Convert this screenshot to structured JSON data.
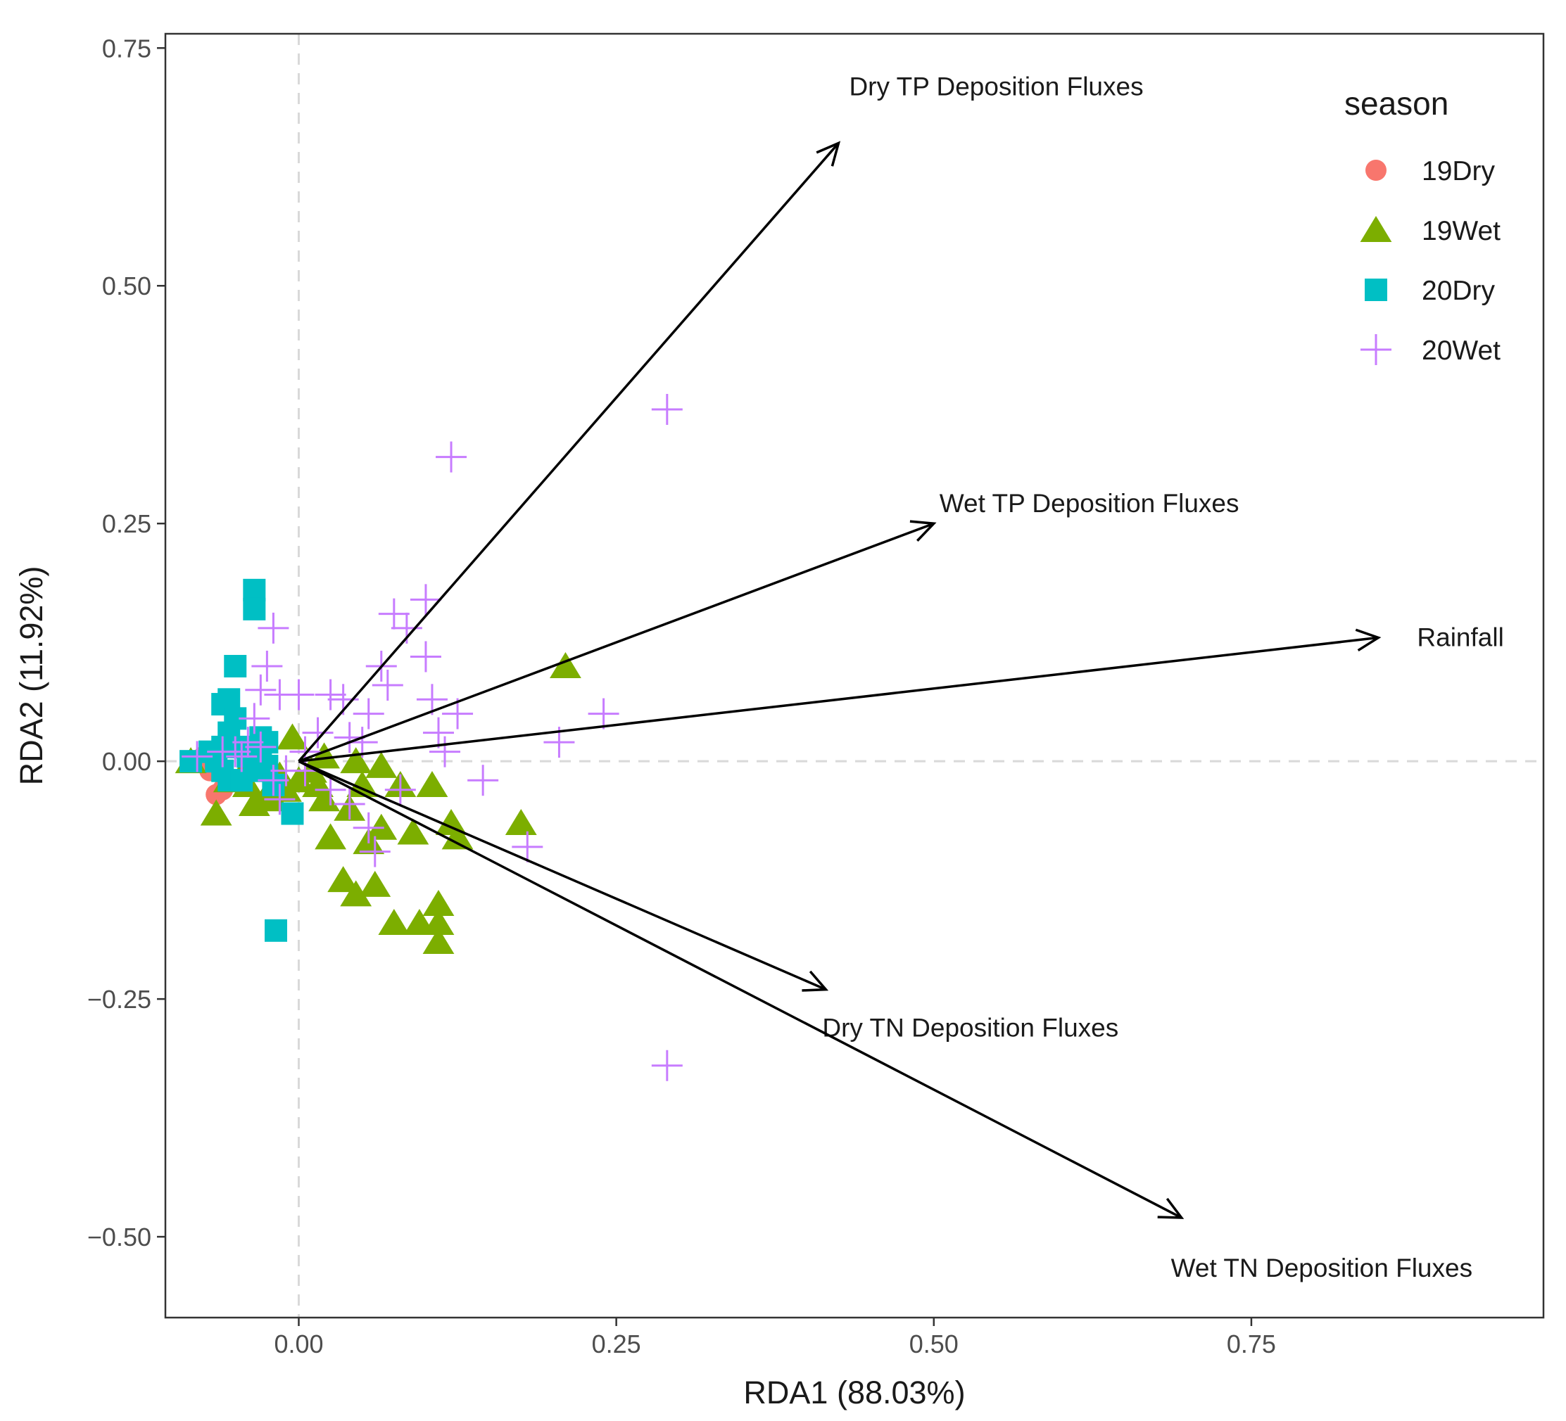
{
  "chart_data": {
    "type": "scatter",
    "xlabel": "RDA1 (88.03%)",
    "ylabel": "RDA2 (11.92%)",
    "xlim": [
      -0.105,
      0.98
    ],
    "ylim": [
      -0.585,
      0.765
    ],
    "x_ticks": [
      0.0,
      0.25,
      0.5,
      0.75
    ],
    "x_tick_labels": [
      "0.00",
      "0.25",
      "0.50",
      "0.75"
    ],
    "y_ticks": [
      0.75,
      0.5,
      0.25,
      0.0,
      -0.25,
      -0.5
    ],
    "y_tick_labels": [
      "0.75",
      "0.50",
      "0.25",
      "0.00",
      "−0.25",
      "−0.50"
    ],
    "reference_lines": {
      "x": 0,
      "y": 0,
      "style": "dashed",
      "color": "#d9d9d9"
    },
    "grid": false,
    "legend": {
      "title": "season",
      "position": "top-right",
      "entries": [
        {
          "label": "19Dry",
          "shape": "circle",
          "color": "#F8766D"
        },
        {
          "label": "19Wet",
          "shape": "triangle",
          "color": "#7CAE00"
        },
        {
          "label": "20Dry",
          "shape": "square",
          "color": "#00BFC4"
        },
        {
          "label": "20Wet",
          "shape": "plus",
          "color": "#C77CFF"
        }
      ]
    },
    "series": [
      {
        "name": "19Dry",
        "shape": "circle",
        "color": "#F8766D",
        "points": [
          {
            "x": -0.065,
            "y": -0.035
          },
          {
            "x": -0.06,
            "y": -0.03
          },
          {
            "x": -0.055,
            "y": -0.02
          },
          {
            "x": -0.07,
            "y": -0.01
          },
          {
            "x": -0.075,
            "y": 0.005
          }
        ]
      },
      {
        "name": "19Wet",
        "shape": "triangle",
        "color": "#7CAE00",
        "points": [
          {
            "x": 0.21,
            "y": 0.1
          },
          {
            "x": -0.085,
            "y": 0.0
          },
          {
            "x": -0.065,
            "y": -0.055
          },
          {
            "x": -0.055,
            "y": -0.02
          },
          {
            "x": -0.045,
            "y": -0.015
          },
          {
            "x": -0.04,
            "y": -0.025
          },
          {
            "x": -0.035,
            "y": -0.045
          },
          {
            "x": -0.025,
            "y": -0.035
          },
          {
            "x": -0.02,
            "y": -0.04
          },
          {
            "x": -0.015,
            "y": -0.015
          },
          {
            "x": -0.01,
            "y": -0.03
          },
          {
            "x": -0.005,
            "y": 0.025
          },
          {
            "x": 0.0,
            "y": -0.02
          },
          {
            "x": 0.01,
            "y": -0.01
          },
          {
            "x": 0.015,
            "y": -0.025
          },
          {
            "x": 0.02,
            "y": -0.04
          },
          {
            "x": 0.02,
            "y": 0.005
          },
          {
            "x": 0.025,
            "y": -0.08
          },
          {
            "x": 0.035,
            "y": -0.125
          },
          {
            "x": 0.04,
            "y": -0.05
          },
          {
            "x": 0.045,
            "y": 0.0
          },
          {
            "x": 0.045,
            "y": -0.14
          },
          {
            "x": 0.05,
            "y": -0.025
          },
          {
            "x": 0.055,
            "y": -0.085
          },
          {
            "x": 0.06,
            "y": -0.13
          },
          {
            "x": 0.065,
            "y": -0.07
          },
          {
            "x": 0.065,
            "y": -0.005
          },
          {
            "x": 0.075,
            "y": -0.17
          },
          {
            "x": 0.08,
            "y": -0.025
          },
          {
            "x": 0.09,
            "y": -0.075
          },
          {
            "x": 0.095,
            "y": -0.17
          },
          {
            "x": 0.105,
            "y": -0.025
          },
          {
            "x": 0.11,
            "y": -0.15
          },
          {
            "x": 0.11,
            "y": -0.17
          },
          {
            "x": 0.11,
            "y": -0.19
          },
          {
            "x": 0.12,
            "y": -0.065
          },
          {
            "x": 0.125,
            "y": -0.08
          },
          {
            "x": 0.175,
            "y": -0.065
          }
        ]
      },
      {
        "name": "20Dry",
        "shape": "square",
        "color": "#00BFC4",
        "points": [
          {
            "x": -0.035,
            "y": 0.18
          },
          {
            "x": -0.035,
            "y": 0.16
          },
          {
            "x": -0.05,
            "y": 0.1
          },
          {
            "x": -0.06,
            "y": 0.06
          },
          {
            "x": -0.055,
            "y": 0.065
          },
          {
            "x": -0.05,
            "y": 0.045
          },
          {
            "x": -0.055,
            "y": 0.03
          },
          {
            "x": -0.06,
            "y": 0.015
          },
          {
            "x": -0.065,
            "y": 0.0
          },
          {
            "x": -0.06,
            "y": -0.01
          },
          {
            "x": -0.055,
            "y": -0.02
          },
          {
            "x": -0.07,
            "y": 0.01
          },
          {
            "x": -0.085,
            "y": 0.0
          },
          {
            "x": -0.045,
            "y": 0.015
          },
          {
            "x": -0.04,
            "y": 0.005
          },
          {
            "x": -0.035,
            "y": -0.01
          },
          {
            "x": -0.03,
            "y": 0.025
          },
          {
            "x": -0.03,
            "y": 0.005
          },
          {
            "x": -0.025,
            "y": -0.005
          },
          {
            "x": -0.025,
            "y": 0.02
          },
          {
            "x": -0.02,
            "y": -0.025
          },
          {
            "x": -0.045,
            "y": -0.02
          },
          {
            "x": -0.005,
            "y": -0.055
          },
          {
            "x": -0.018,
            "y": -0.178
          }
        ]
      },
      {
        "name": "20Wet",
        "shape": "plus",
        "color": "#C77CFF",
        "points": [
          {
            "x": 0.29,
            "y": 0.37
          },
          {
            "x": 0.12,
            "y": 0.32
          },
          {
            "x": 0.29,
            "y": -0.32
          },
          {
            "x": 0.24,
            "y": 0.05
          },
          {
            "x": 0.205,
            "y": 0.02
          },
          {
            "x": 0.18,
            "y": -0.09
          },
          {
            "x": 0.145,
            "y": -0.02
          },
          {
            "x": 0.125,
            "y": 0.05
          },
          {
            "x": 0.115,
            "y": 0.01
          },
          {
            "x": 0.11,
            "y": 0.03
          },
          {
            "x": 0.105,
            "y": 0.065
          },
          {
            "x": 0.1,
            "y": 0.17
          },
          {
            "x": 0.1,
            "y": 0.11
          },
          {
            "x": 0.085,
            "y": 0.14
          },
          {
            "x": 0.075,
            "y": 0.155
          },
          {
            "x": 0.07,
            "y": 0.08
          },
          {
            "x": 0.065,
            "y": 0.1
          },
          {
            "x": 0.055,
            "y": 0.05
          },
          {
            "x": 0.05,
            "y": 0.02
          },
          {
            "x": 0.04,
            "y": 0.025
          },
          {
            "x": 0.035,
            "y": 0.065
          },
          {
            "x": 0.025,
            "y": 0.07
          },
          {
            "x": 0.015,
            "y": 0.03
          },
          {
            "x": 0.005,
            "y": 0.01
          },
          {
            "x": 0.0,
            "y": 0.07
          },
          {
            "x": -0.015,
            "y": 0.07
          },
          {
            "x": -0.02,
            "y": 0.14
          },
          {
            "x": -0.025,
            "y": 0.1
          },
          {
            "x": -0.03,
            "y": 0.075
          },
          {
            "x": -0.035,
            "y": 0.045
          },
          {
            "x": -0.04,
            "y": 0.02
          },
          {
            "x": -0.045,
            "y": 0.005
          },
          {
            "x": -0.05,
            "y": 0.01
          },
          {
            "x": -0.03,
            "y": 0.015
          },
          {
            "x": -0.02,
            "y": -0.02
          },
          {
            "x": -0.015,
            "y": -0.04
          },
          {
            "x": -0.01,
            "y": -0.01
          },
          {
            "x": 0.005,
            "y": -0.01
          },
          {
            "x": 0.025,
            "y": -0.03
          },
          {
            "x": 0.04,
            "y": -0.045
          },
          {
            "x": 0.055,
            "y": -0.07
          },
          {
            "x": 0.06,
            "y": -0.095
          },
          {
            "x": 0.08,
            "y": -0.03
          },
          {
            "x": -0.08,
            "y": 0.005
          },
          {
            "x": -0.06,
            "y": 0.01
          }
        ]
      }
    ],
    "vectors": [
      {
        "label": "Dry TP Deposition Fluxes",
        "x": 0.425,
        "y": 0.65
      },
      {
        "label": "Wet TP Deposition Fluxes",
        "x": 0.5,
        "y": 0.25
      },
      {
        "label": "Rainfall",
        "x": 0.85,
        "y": 0.13
      },
      {
        "label": "Dry TN Deposition Fluxes",
        "x": 0.415,
        "y": -0.24
      },
      {
        "label": "Wet TN Deposition Fluxes",
        "x": 0.695,
        "y": -0.48
      }
    ]
  }
}
